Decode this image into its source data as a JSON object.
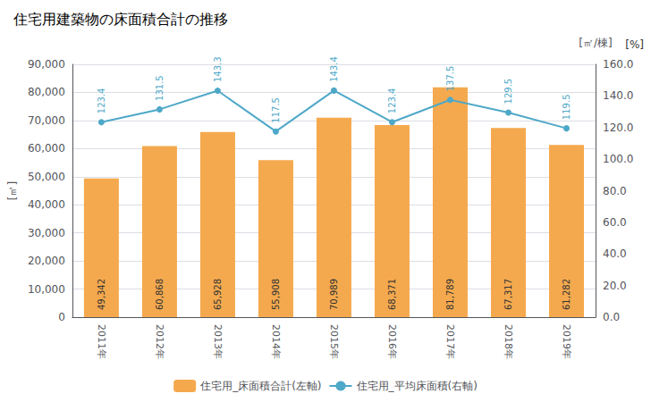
{
  "chart_data": {
    "type": "bar",
    "title": "住宅用建築物の床面積合計の推移",
    "categories": [
      "2011年",
      "2012年",
      "2013年",
      "2014年",
      "2015年",
      "2016年",
      "2017年",
      "2018年",
      "2019年"
    ],
    "ylabel": "[㎡]",
    "y2label": "[㎡/棟]",
    "annotations": [
      "[%]"
    ],
    "ylim": [
      0,
      90000
    ],
    "yticks": [
      0,
      {
        "value": 10000,
        "label": "10,000"
      },
      {
        "value": 20000,
        "label": "20,000"
      },
      {
        "value": 30000,
        "label": "30,000"
      },
      {
        "value": 40000,
        "label": "40,000"
      },
      {
        "value": 50000,
        "label": "50,000"
      },
      {
        "value": 60000,
        "label": "60,000"
      },
      {
        "value": 70000,
        "label": "70,000"
      },
      {
        "value": 80000,
        "label": "80,000"
      },
      {
        "value": 90000,
        "label": "90,000"
      }
    ],
    "y2lim": [
      0,
      160.0
    ],
    "y2ticks": [
      {
        "value": 0,
        "label": "0.0"
      },
      {
        "value": 20,
        "label": "20.0"
      },
      {
        "value": 40,
        "label": "40.0"
      },
      {
        "value": 60,
        "label": "60.0"
      },
      {
        "value": 80,
        "label": "80.0"
      },
      {
        "value": 100,
        "label": "100.0"
      },
      {
        "value": 120,
        "label": "120.0"
      },
      {
        "value": 140,
        "label": "140.0"
      },
      {
        "value": 160,
        "label": "160.0"
      }
    ],
    "grid": true,
    "legend": "bottom",
    "series": [
      {
        "name": "住宅用_床面積合計(左軸)",
        "type": "bar",
        "color": "#F5A94E",
        "values": [
          49342,
          60868,
          65928,
          55908,
          70989,
          68371,
          81789,
          67317,
          61282
        ],
        "data_labels": true,
        "value_labels": [
          "49,342",
          "60,868",
          "65,928",
          "55,908",
          "70,989",
          "68,371",
          "81,789",
          "67,317",
          "61,282"
        ]
      },
      {
        "name": "住宅用_平均床面積(右軸)",
        "type": "line",
        "color": "#4EA8C8",
        "marker": "circle",
        "axis": "y2",
        "values": [
          123.4,
          131.5,
          143.3,
          117.5,
          143.4,
          123.4,
          137.5,
          129.5,
          119.5
        ],
        "data_labels": true
      }
    ]
  }
}
